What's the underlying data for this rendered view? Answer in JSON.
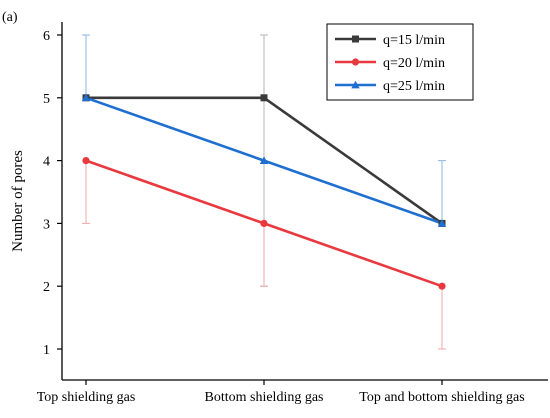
{
  "chart_data": {
    "type": "line",
    "panel_label": "(a)",
    "title": "",
    "xlabel": "",
    "ylabel": "Number of pores",
    "categories": [
      "Top shielding gas",
      "Bottom shielding gas",
      "Top and bottom shielding gas"
    ],
    "ylim": [
      0.5,
      6
    ],
    "yticks": [
      1,
      2,
      3,
      4,
      5,
      6
    ],
    "grid": false,
    "legend_position": "top-right",
    "series": [
      {
        "name": "q=15 l/min",
        "values": [
          5,
          5,
          3
        ],
        "error_low": [
          5,
          2,
          3
        ],
        "error_high": [
          5,
          6,
          3
        ],
        "color": "#3a3a3a",
        "error_color": "#b5b5b5",
        "marker": "square"
      },
      {
        "name": "q=20 l/min",
        "values": [
          4,
          3,
          2
        ],
        "error_low": [
          3,
          2,
          1
        ],
        "error_high": [
          4,
          3,
          2
        ],
        "color": "#e8393f",
        "error_color": "#f0a6a8",
        "marker": "circle"
      },
      {
        "name": "q=25 l/min",
        "values": [
          5,
          4,
          3
        ],
        "error_low": [
          5,
          4,
          3
        ],
        "error_high": [
          6,
          4,
          4
        ],
        "color": "#1e6fd0",
        "error_color": "#8ab6e6",
        "marker": "triangle"
      }
    ]
  }
}
